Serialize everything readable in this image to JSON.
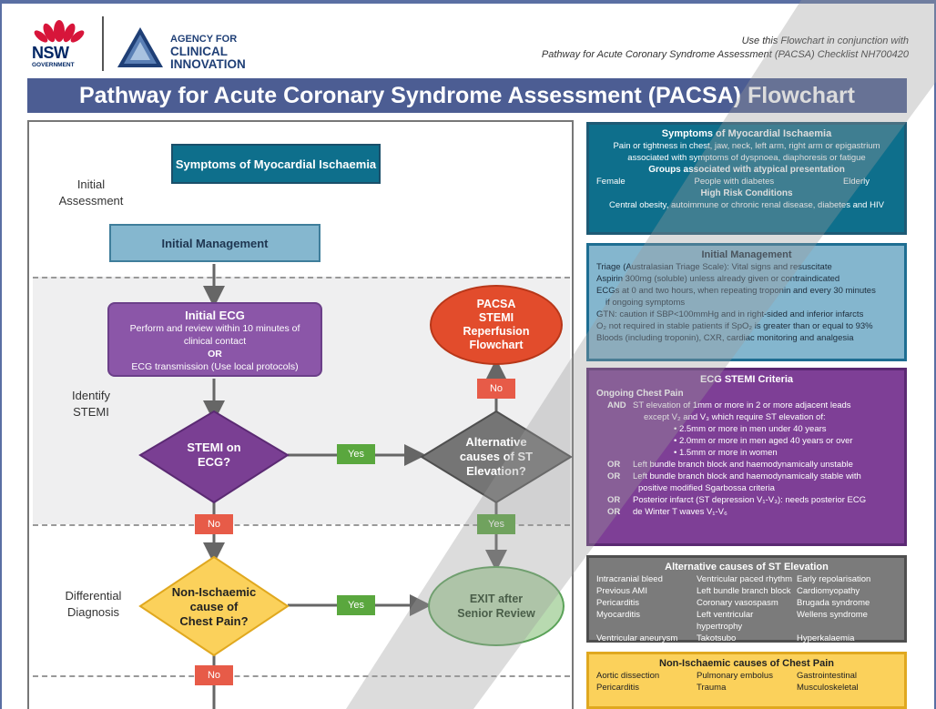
{
  "header": {
    "nsw_text": "NSW",
    "nsw_gov": "GOVERNMENT",
    "aci_line1": "AGENCY FOR",
    "aci_line2": "CLINICAL",
    "aci_line3": "INNOVATION",
    "use_line1": "Use this Flowchart in conjunction with",
    "use_line2": "Pathway for Acute Coronary Syndrome Assessment (PACSA) Checklist NH700420",
    "title": "Pathway for Acute Coronary Syndrome Assessment (PACSA) Flowchart"
  },
  "flow": {
    "sections": {
      "initial_assessment_1": "Initial",
      "initial_assessment_2": "Assessment",
      "identify_stemi_1": "Identify",
      "identify_stemi_2": "STEMI",
      "differential_1": "Differential",
      "differential_2": "Diagnosis"
    },
    "symptoms": "Symptoms of Myocardial Ischaemia",
    "initial_management": "Initial Management",
    "ecg": {
      "title": "Initial ECG",
      "line1": "Perform and review within 10 minutes of",
      "line2": "clinical contact",
      "or": "OR",
      "line3": "ECG transmission (Use local protocols)"
    },
    "pacsa": [
      "PACSA",
      "STEMI",
      "Reperfusion",
      "Flowchart"
    ],
    "stemi_q": [
      "STEMI on",
      "ECG?"
    ],
    "alt_q": [
      "Alternative",
      "causes of ST",
      "Elevation?"
    ],
    "non_isch_q": [
      "Non-Ischaemic",
      "cause of",
      "Chest Pain?"
    ],
    "exit": [
      "EXIT after",
      "Senior Review"
    ],
    "tags": {
      "yes": "Yes",
      "no": "No"
    }
  },
  "right": {
    "symptoms": {
      "title": "Symptoms of Myocardial Ischaemia",
      "line1": "Pain or tightness in chest, jaw, neck, left arm, right arm or epigastrium",
      "line2": "associated with symptoms of dyspnoea, diaphoresis or fatigue",
      "atypical_title": "Groups associated with atypical presentation",
      "atypical": [
        "Female",
        "People with diabetes",
        "Elderly"
      ],
      "risk_title": "High Risk Conditions",
      "risk": "Central obesity, autoimmune or chronic renal disease, diabetes and HIV"
    },
    "initial_management": {
      "title": "Initial Management",
      "lines": [
        "Triage (Australasian Triage Scale): Vital signs and resuscitate",
        "Aspirin 300mg (soluble) unless already given or contraindicated",
        "ECGs at 0 and two hours, when repeating troponin and every 30 minutes",
        "    if ongoing symptoms",
        "GTN: caution if SBP<100mmHg and in right-sided and inferior infarcts",
        "O₂ not required in stable patients if SpO₂ is greater than or equal to 93%",
        "Bloods (including troponin), CXR, cardiac monitoring and analgesia"
      ]
    },
    "ecg_criteria": {
      "title": "ECG STEMI Criteria",
      "subtitle": "Ongoing Chest Pain",
      "and_key": "AND",
      "and_line1": "ST elevation of 1mm or more in 2 or more adjacent leads",
      "and_line2": "except V₂ and V₃ which require ST elevation of:",
      "bullets": [
        "• 2.5mm or more in men under 40 years",
        "• 2.0mm or more in men aged 40 years or over",
        "• 1.5mm or more in women"
      ],
      "or_key": "OR",
      "or1": "Left bundle branch block and haemodynamically unstable",
      "or2_a": "Left bundle branch block and haemodynamically stable with",
      "or2_b": "positive modified Sgarbossa criteria",
      "or3_a": "Posterior infarct (ST depression V₁-V₃): needs posterior ECG",
      "or4": "de Winter T waves V₁-V₆"
    },
    "alt_causes": {
      "title": "Alternative causes of ST Elevation",
      "items": [
        "Intracranial bleed",
        "Ventricular paced rhythm",
        "Early repolarisation",
        "Previous AMI",
        "Left bundle branch block",
        "Cardiomyopathy",
        "Pericarditis",
        "Coronary vasospasm",
        "Brugada syndrome",
        "Myocarditis",
        "Left ventricular hypertrophy",
        "Wellens syndrome",
        "Ventricular aneurysm",
        "Takotsubo cardiomyopathy",
        "Hyperkalaemia"
      ]
    },
    "non_isch": {
      "title": "Non-Ischaemic causes of Chest Pain",
      "items": [
        "Aortic dissection",
        "Pulmonary embolus",
        "Gastrointestinal",
        "Pericarditis",
        "Trauma",
        "Musculoskeletal"
      ]
    }
  },
  "colors": {
    "title_bar": "#4c5d93",
    "teal": "#0e6f8c",
    "light_blue": "#85b7cf",
    "purple": "#8b56a8",
    "red": "#e24c2c",
    "green": "#5aa73e",
    "yellow": "#fbd15b",
    "gray": "#7b7b7b"
  }
}
